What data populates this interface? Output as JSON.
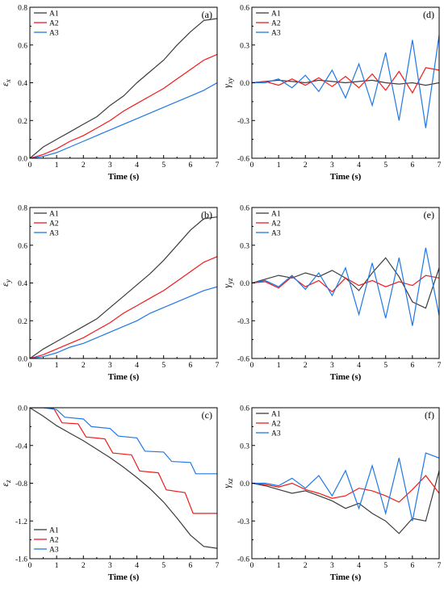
{
  "colors": {
    "A1": "#3d3d3d",
    "A2": "#f21a1a",
    "A3": "#1f78e6"
  },
  "chart_data": [
    {
      "type": "line",
      "panel": "(a)",
      "ylabel": "ε_x",
      "xlabel": "Time (s)",
      "xlim": [
        0,
        7
      ],
      "ylim": [
        0,
        0.8
      ],
      "xticks": [
        "0",
        "1",
        "2",
        "3",
        "4",
        "5",
        "6",
        "7"
      ],
      "yticks": [
        "0.0",
        "0.2",
        "0.4",
        "0.6",
        "0.8"
      ],
      "legend_position": "top-left",
      "series": [
        {
          "name": "A1",
          "x": [
            0,
            0.5,
            1,
            1.5,
            2,
            2.5,
            3,
            3.5,
            4,
            4.5,
            5,
            5.5,
            6,
            6.5,
            7
          ],
          "y": [
            0,
            0.06,
            0.1,
            0.14,
            0.18,
            0.22,
            0.28,
            0.33,
            0.4,
            0.46,
            0.52,
            0.6,
            0.67,
            0.73,
            0.74
          ]
        },
        {
          "name": "A2",
          "x": [
            0,
            0.5,
            1,
            1.5,
            2,
            2.5,
            3,
            3.5,
            4,
            4.5,
            5,
            5.5,
            6,
            6.5,
            7
          ],
          "y": [
            0,
            0.02,
            0.05,
            0.09,
            0.12,
            0.16,
            0.2,
            0.25,
            0.29,
            0.33,
            0.37,
            0.42,
            0.47,
            0.52,
            0.55
          ]
        },
        {
          "name": "A3",
          "x": [
            0,
            0.5,
            1,
            1.5,
            2,
            2.5,
            3,
            3.5,
            4,
            4.5,
            5,
            5.5,
            6,
            6.5,
            7
          ],
          "y": [
            0,
            0.01,
            0.03,
            0.06,
            0.09,
            0.12,
            0.15,
            0.18,
            0.21,
            0.24,
            0.27,
            0.3,
            0.33,
            0.36,
            0.4
          ]
        }
      ]
    },
    {
      "type": "line",
      "panel": "(b)",
      "ylabel": "ε_y",
      "xlabel": "Time (s)",
      "xlim": [
        0,
        7
      ],
      "ylim": [
        0,
        0.8
      ],
      "xticks": [
        "0",
        "1",
        "2",
        "3",
        "4",
        "5",
        "6",
        "7"
      ],
      "yticks": [
        "0.0",
        "0.2",
        "0.4",
        "0.6",
        "0.8"
      ],
      "legend_position": "top-left",
      "series": [
        {
          "name": "A1",
          "x": [
            0,
            0.5,
            1,
            1.5,
            2,
            2.5,
            3,
            3.5,
            4,
            4.5,
            5,
            5.5,
            6,
            6.5,
            7
          ],
          "y": [
            0,
            0.05,
            0.09,
            0.13,
            0.17,
            0.21,
            0.27,
            0.33,
            0.39,
            0.45,
            0.52,
            0.6,
            0.68,
            0.74,
            0.75
          ]
        },
        {
          "name": "A2",
          "x": [
            0,
            0.5,
            1,
            1.5,
            2,
            2.5,
            3,
            3.5,
            4,
            4.5,
            5,
            5.5,
            6,
            6.5,
            7
          ],
          "y": [
            0,
            0.02,
            0.05,
            0.08,
            0.11,
            0.15,
            0.19,
            0.24,
            0.28,
            0.32,
            0.36,
            0.41,
            0.46,
            0.51,
            0.54
          ]
        },
        {
          "name": "A3",
          "x": [
            0,
            0.5,
            1,
            1.5,
            2,
            2.5,
            3,
            3.5,
            4,
            4.5,
            5,
            5.5,
            6,
            6.5,
            7
          ],
          "y": [
            0,
            0.01,
            0.03,
            0.06,
            0.08,
            0.11,
            0.14,
            0.17,
            0.2,
            0.24,
            0.27,
            0.3,
            0.33,
            0.36,
            0.38
          ]
        }
      ]
    },
    {
      "type": "line",
      "panel": "(c)",
      "ylabel": "ε_z",
      "xlabel": "Time (s)",
      "xlim": [
        0,
        7
      ],
      "ylim": [
        -1.6,
        0.0
      ],
      "xticks": [
        "0",
        "1",
        "2",
        "3",
        "4",
        "5",
        "6",
        "7"
      ],
      "yticks": [
        "-1.6",
        "-1.2",
        "-0.8",
        "-0.4",
        "0.0"
      ],
      "legend_position": "bottom-left",
      "series": [
        {
          "name": "A1",
          "x": [
            0,
            0.5,
            1,
            1.5,
            2,
            2.5,
            3,
            3.5,
            4,
            4.5,
            5,
            5.5,
            6,
            6.5,
            7
          ],
          "y": [
            0,
            -0.09,
            -0.19,
            -0.27,
            -0.35,
            -0.44,
            -0.53,
            -0.63,
            -0.74,
            -0.86,
            -1.0,
            -1.17,
            -1.35,
            -1.47,
            -1.49
          ]
        },
        {
          "name": "A2",
          "x": [
            0,
            0.5,
            0.9,
            1.2,
            1.8,
            2.1,
            2.8,
            3.1,
            3.8,
            4.1,
            4.8,
            5.1,
            5.8,
            6.1,
            7
          ],
          "y": [
            0,
            0,
            -0.01,
            -0.16,
            -0.17,
            -0.31,
            -0.33,
            -0.48,
            -0.5,
            -0.67,
            -0.69,
            -0.87,
            -0.9,
            -1.12,
            -1.12
          ]
        },
        {
          "name": "A3",
          "x": [
            0,
            0.5,
            1,
            1.3,
            2,
            2.3,
            3,
            3.3,
            4,
            4.3,
            5,
            5.3,
            6,
            6.2,
            7
          ],
          "y": [
            0,
            0,
            -0.02,
            -0.1,
            -0.12,
            -0.2,
            -0.22,
            -0.3,
            -0.32,
            -0.46,
            -0.47,
            -0.57,
            -0.58,
            -0.7,
            -0.7
          ]
        }
      ]
    },
    {
      "type": "line",
      "panel": "(d)",
      "ylabel": "γ_xy",
      "xlabel": "Time (s)",
      "xlim": [
        0,
        7
      ],
      "ylim": [
        -0.6,
        0.6
      ],
      "xticks": [
        "0",
        "1",
        "2",
        "3",
        "4",
        "5",
        "6",
        "7"
      ],
      "yticks": [
        "-0.6",
        "-0.3",
        "0.0",
        "0.3",
        "0.6"
      ],
      "legend_position": "top-left",
      "series": [
        {
          "name": "A1",
          "x": [
            0,
            0.5,
            1,
            1.5,
            2,
            2.5,
            3,
            3.5,
            4,
            4.5,
            5,
            5.5,
            6,
            6.5,
            7
          ],
          "y": [
            0,
            0.01,
            0.02,
            0.01,
            0,
            0.02,
            0.01,
            0,
            0.01,
            0.02,
            0,
            -0.01,
            0,
            -0.02,
            0
          ]
        },
        {
          "name": "A2",
          "x": [
            0,
            0.5,
            1,
            1.5,
            2,
            2.5,
            3,
            3.5,
            4,
            4.5,
            5,
            5.5,
            6,
            6.5,
            7
          ],
          "y": [
            0,
            0.01,
            -0.02,
            0.03,
            -0.02,
            0.04,
            -0.03,
            0.05,
            -0.04,
            0.07,
            -0.06,
            0.09,
            -0.08,
            0.12,
            0.1
          ]
        },
        {
          "name": "A3",
          "x": [
            0,
            0.5,
            1,
            1.5,
            2,
            2.5,
            3,
            3.5,
            4,
            4.5,
            5,
            5.5,
            6,
            6.5,
            7
          ],
          "y": [
            0,
            0,
            0.03,
            -0.04,
            0.06,
            -0.07,
            0.1,
            -0.12,
            0.15,
            -0.18,
            0.24,
            -0.3,
            0.34,
            -0.36,
            0.38
          ]
        }
      ]
    },
    {
      "type": "line",
      "panel": "(e)",
      "ylabel": "γ_yz",
      "xlabel": "Time (s)",
      "xlim": [
        0,
        7
      ],
      "ylim": [
        -0.6,
        0.6
      ],
      "xticks": [
        "0",
        "1",
        "2",
        "3",
        "4",
        "5",
        "6",
        "7"
      ],
      "yticks": [
        "-0.6",
        "-0.3",
        "0.0",
        "0.3",
        "0.6"
      ],
      "legend_position": "top-left",
      "series": [
        {
          "name": "A1",
          "x": [
            0,
            0.5,
            1,
            1.5,
            2,
            2.5,
            3,
            3.5,
            4,
            4.5,
            5,
            5.5,
            6,
            6.5,
            7
          ],
          "y": [
            0,
            0.03,
            0.06,
            0.04,
            0.08,
            0.05,
            0.1,
            0.04,
            -0.06,
            0.08,
            0.2,
            0.05,
            -0.15,
            -0.2,
            0.12
          ]
        },
        {
          "name": "A2",
          "x": [
            0,
            0.5,
            1,
            1.5,
            2,
            2.5,
            3,
            3.5,
            4,
            4.5,
            5,
            5.5,
            6,
            6.5,
            7
          ],
          "y": [
            0,
            0.01,
            -0.04,
            0.05,
            -0.03,
            0.02,
            -0.07,
            0.04,
            -0.02,
            0.02,
            -0.03,
            0.01,
            -0.02,
            0.06,
            0.04
          ]
        },
        {
          "name": "A3",
          "x": [
            0,
            0.5,
            1,
            1.5,
            2,
            2.5,
            3,
            3.5,
            4,
            4.5,
            5,
            5.5,
            6,
            6.5,
            7
          ],
          "y": [
            0,
            0.02,
            -0.03,
            0.06,
            -0.05,
            0.08,
            -0.1,
            0.12,
            -0.25,
            0.16,
            -0.28,
            0.2,
            -0.34,
            0.28,
            -0.26
          ]
        }
      ]
    },
    {
      "type": "line",
      "panel": "(f)",
      "ylabel": "γ_xz",
      "xlabel": "Time (s)",
      "xlim": [
        0,
        7
      ],
      "ylim": [
        -0.6,
        0.6
      ],
      "xticks": [
        "0",
        "1",
        "2",
        "3",
        "4",
        "5",
        "6",
        "7"
      ],
      "yticks": [
        "-0.6",
        "-0.3",
        "0.0",
        "0.3",
        "0.6"
      ],
      "legend_position": "top-left",
      "series": [
        {
          "name": "A1",
          "x": [
            0,
            0.5,
            1,
            1.5,
            2,
            2.5,
            3,
            3.5,
            4,
            4.5,
            5,
            5.5,
            6,
            6.5,
            7
          ],
          "y": [
            0,
            -0.02,
            -0.05,
            -0.08,
            -0.06,
            -0.1,
            -0.14,
            -0.2,
            -0.16,
            -0.24,
            -0.3,
            -0.4,
            -0.28,
            -0.3,
            0.1
          ]
        },
        {
          "name": "A2",
          "x": [
            0,
            0.5,
            1,
            1.5,
            2,
            2.5,
            3,
            3.5,
            4,
            4.5,
            5,
            5.5,
            6,
            6.5,
            7
          ],
          "y": [
            0,
            -0.01,
            -0.03,
            0,
            -0.05,
            -0.08,
            -0.12,
            -0.1,
            -0.04,
            -0.06,
            -0.1,
            -0.15,
            -0.05,
            0.06,
            -0.08
          ]
        },
        {
          "name": "A3",
          "x": [
            0,
            0.5,
            1,
            1.5,
            2,
            2.5,
            3,
            3.5,
            4,
            4.5,
            5,
            5.5,
            6,
            6.5,
            7
          ],
          "y": [
            0,
            0,
            -0.02,
            0.04,
            -0.04,
            0.06,
            -0.1,
            0.1,
            -0.2,
            0.14,
            -0.24,
            0.2,
            -0.3,
            0.24,
            0.2
          ]
        }
      ]
    }
  ]
}
